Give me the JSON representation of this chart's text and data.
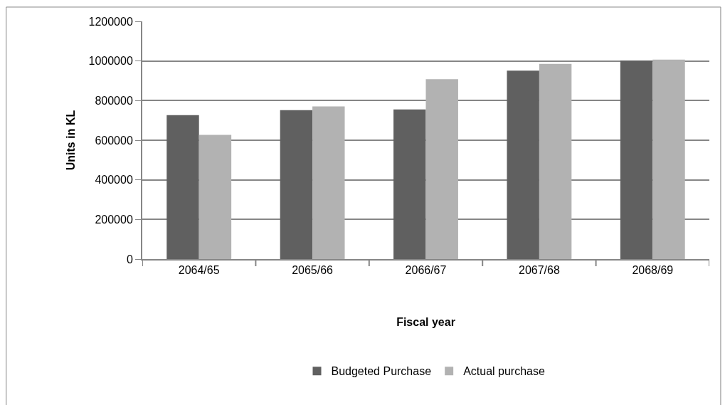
{
  "chart_data": {
    "type": "bar",
    "xlabel": "Fiscal year",
    "ylabel": "Units in KL",
    "categories": [
      "2064/65",
      "2065/66",
      "2066/67",
      "2067/68",
      "2068/69"
    ],
    "series": [
      {
        "name": "Budgeted Purchase",
        "color": "#606060",
        "values": [
          727000,
          752000,
          755000,
          951000,
          1002000
        ]
      },
      {
        "name": "Actual purchase",
        "color": "#b2b2b2",
        "values": [
          627000,
          771000,
          908000,
          985000,
          1007000
        ]
      }
    ],
    "ylim": [
      0,
      1200000
    ],
    "yticks": [
      0,
      200000,
      400000,
      600000,
      800000,
      1000000,
      1200000
    ],
    "grid": "y",
    "legend": "bottom"
  }
}
